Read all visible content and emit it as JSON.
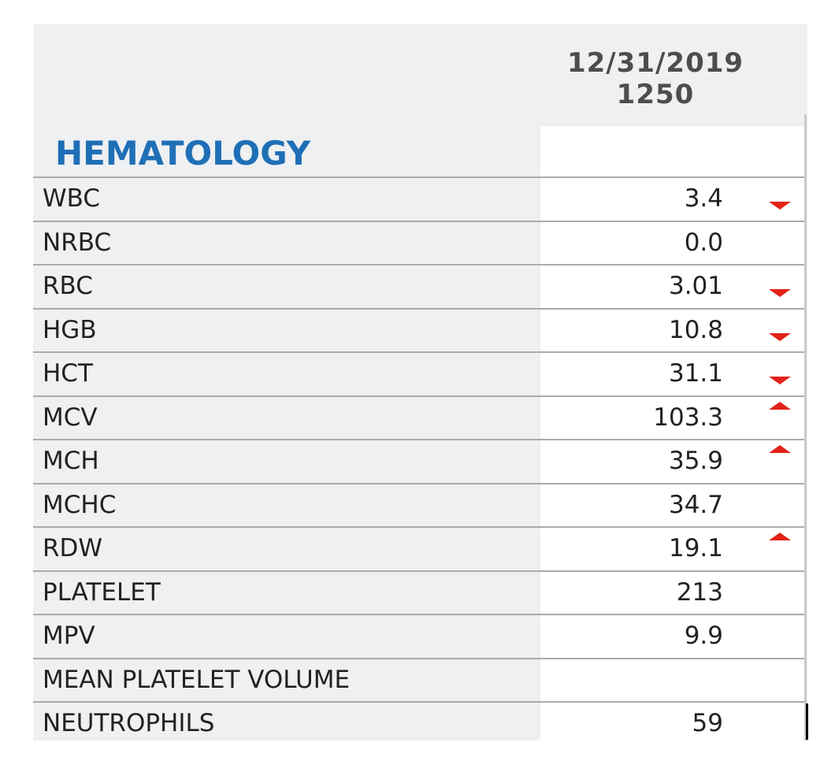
{
  "header": {
    "date": "12/31/2019",
    "time": "1250"
  },
  "section": {
    "title": "HEMATOLOGY"
  },
  "colors": {
    "section_title": "#1f6fb6",
    "flag": "#e2231a"
  },
  "results": [
    {
      "name": "WBC",
      "value": "3.4",
      "flag": "low"
    },
    {
      "name": "NRBC",
      "value": "0.0",
      "flag": ""
    },
    {
      "name": "RBC",
      "value": "3.01",
      "flag": "low"
    },
    {
      "name": "HGB",
      "value": "10.8",
      "flag": "low"
    },
    {
      "name": "HCT",
      "value": "31.1",
      "flag": "low"
    },
    {
      "name": "MCV",
      "value": "103.3",
      "flag": "high"
    },
    {
      "name": "MCH",
      "value": "35.9",
      "flag": "high"
    },
    {
      "name": "MCHC",
      "value": "34.7",
      "flag": ""
    },
    {
      "name": "RDW",
      "value": "19.1",
      "flag": "high"
    },
    {
      "name": "PLATELET",
      "value": "213",
      "flag": ""
    },
    {
      "name": "MPV",
      "value": "9.9",
      "flag": ""
    },
    {
      "name": "MEAN PLATELET VOLUME",
      "value": "",
      "flag": ""
    },
    {
      "name": "NEUTROPHILS",
      "value": "59",
      "flag": ""
    }
  ]
}
